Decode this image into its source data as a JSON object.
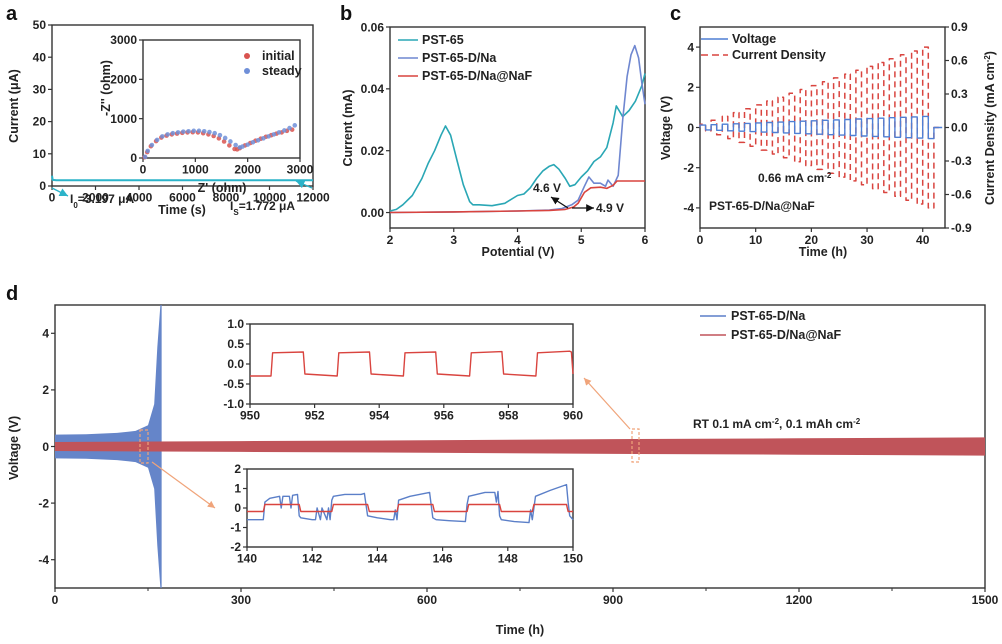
{
  "chart_data": [
    {
      "id": "a",
      "panel_label": "a",
      "type": "line",
      "xlabel": "Time (s)",
      "ylabel": "Current (μA)",
      "xlim": [
        0,
        12000
      ],
      "ylim": [
        0,
        50
      ],
      "xticks": [
        "0",
        "2000",
        "4000",
        "6000",
        "8000",
        "10000",
        "12000"
      ],
      "yticks": [
        "0",
        "10",
        "20",
        "30",
        "40",
        "50"
      ],
      "series": [
        {
          "name": "current",
          "color": "#2bb3c9",
          "x": [
            0,
            30,
            200,
            2000,
            4000,
            6000,
            8000,
            10000,
            12000
          ],
          "y": [
            3.197,
            1.9,
            1.8,
            1.78,
            1.77,
            1.8,
            1.78,
            1.77,
            1.772
          ]
        }
      ],
      "annotations": [
        {
          "text_main": "I",
          "text_sub": "0",
          "text_rest": "=3.197 μA"
        },
        {
          "text_main": "I",
          "text_sub": "S",
          "text_rest": "=1.772 μA"
        }
      ],
      "inset": {
        "type": "scatter",
        "xlabel": "Z' (ohm)",
        "ylabel": "-Z'' (ohm)",
        "xlim": [
          0,
          3000
        ],
        "ylim": [
          0,
          3000
        ],
        "xticks": [
          "0",
          "1000",
          "2000",
          "3000"
        ],
        "yticks": [
          "0",
          "1000",
          "2000",
          "3000"
        ],
        "legend": [
          "initial",
          "steady"
        ],
        "legend_position": "top-right",
        "series": [
          {
            "name": "initial",
            "color": "#d9534f",
            "x": [
              30,
              80,
              150,
              250,
              350,
              450,
              550,
              650,
              750,
              850,
              950,
              1050,
              1150,
              1250,
              1350,
              1450,
              1550,
              1650,
              1750,
              1800,
              1850,
              1950,
              2050,
              2150,
              2250,
              2350,
              2450,
              2550,
              2650,
              2750,
              2850
            ],
            "y": [
              20,
              150,
              300,
              430,
              520,
              570,
              600,
              620,
              640,
              650,
              655,
              650,
              630,
              600,
              560,
              500,
              420,
              320,
              230,
              220,
              250,
              320,
              380,
              440,
              490,
              540,
              580,
              620,
              650,
              690,
              720
            ]
          },
          {
            "name": "steady",
            "color": "#6f8fd8",
            "x": [
              40,
              90,
              170,
              270,
              370,
              470,
              570,
              670,
              770,
              870,
              970,
              1070,
              1170,
              1270,
              1370,
              1470,
              1570,
              1670,
              1770,
              1850,
              1900,
              2000,
              2100,
              2200,
              2300,
              2400,
              2500,
              2600,
              2700,
              2800,
              2900
            ],
            "y": [
              30,
              180,
              330,
              460,
              550,
              600,
              630,
              650,
              670,
              680,
              690,
              690,
              680,
              660,
              630,
              580,
              510,
              420,
              330,
              270,
              290,
              340,
              400,
              450,
              500,
              550,
              600,
              650,
              700,
              760,
              830
            ]
          }
        ]
      }
    },
    {
      "id": "b",
      "panel_label": "b",
      "type": "line",
      "xlabel": "Potential (V)",
      "ylabel": "Current (mA)",
      "xlim": [
        2,
        6
      ],
      "ylim": [
        -0.005,
        0.06
      ],
      "xticks": [
        "2",
        "3",
        "4",
        "5",
        "6"
      ],
      "yticks": [
        "0.00",
        "0.02",
        "0.04",
        "0.06"
      ],
      "legend_position": "top-left",
      "series": [
        {
          "name": "PST-65",
          "color": "#2aa7b5",
          "x": [
            2.0,
            2.1,
            2.2,
            2.35,
            2.5,
            2.6,
            2.7,
            2.8,
            2.87,
            2.95,
            3.05,
            3.15,
            3.25,
            3.3,
            3.4,
            3.6,
            3.8,
            4.0,
            4.1,
            4.2,
            4.3,
            4.4,
            4.5,
            4.57,
            4.65,
            4.75,
            4.82,
            4.9,
            5.0,
            5.1,
            5.2,
            5.3,
            5.4,
            5.5,
            5.55,
            5.65,
            5.75,
            5.85,
            5.95,
            6.0
          ],
          "y": [
            0.0005,
            0.001,
            0.0025,
            0.0055,
            0.011,
            0.016,
            0.02,
            0.025,
            0.028,
            0.025,
            0.017,
            0.009,
            0.0035,
            0.0025,
            0.0025,
            0.0022,
            0.003,
            0.0055,
            0.006,
            0.008,
            0.011,
            0.0135,
            0.015,
            0.0155,
            0.014,
            0.011,
            0.0085,
            0.009,
            0.0115,
            0.0135,
            0.0165,
            0.018,
            0.021,
            0.029,
            0.0345,
            0.031,
            0.033,
            0.036,
            0.041,
            0.045
          ]
        },
        {
          "name": "PST-65-D/Na",
          "color": "#6f87d0",
          "x": [
            2.0,
            3.0,
            4.0,
            4.5,
            4.7,
            4.85,
            4.95,
            5.05,
            5.12,
            5.2,
            5.3,
            5.38,
            5.42,
            5.5,
            5.58,
            5.65,
            5.72,
            5.78,
            5.84,
            5.9,
            5.95,
            6.0
          ],
          "y": [
            0.0,
            0.0002,
            0.0005,
            0.0008,
            0.0013,
            0.0025,
            0.004,
            0.0085,
            0.0115,
            0.0095,
            0.0095,
            0.0085,
            0.0105,
            0.0085,
            0.012,
            0.03,
            0.044,
            0.051,
            0.054,
            0.05,
            0.042,
            0.035
          ]
        },
        {
          "name": "PST-65-D/Na@NaF",
          "color": "#d9443f",
          "x": [
            2.0,
            3.0,
            4.0,
            4.5,
            4.75,
            4.88,
            4.95,
            5.05,
            5.15,
            5.3,
            5.4,
            5.5,
            5.56,
            5.6,
            6.0
          ],
          "y": [
            0.0,
            0.0002,
            0.0005,
            0.0007,
            0.001,
            0.0018,
            0.003,
            0.0065,
            0.008,
            0.0082,
            0.0078,
            0.0088,
            0.0102,
            0.0102,
            0.0102
          ]
        }
      ],
      "annotations": [
        {
          "text": "4.6 V"
        },
        {
          "text": "4.9 V"
        }
      ]
    },
    {
      "id": "c",
      "panel_label": "c",
      "type": "line",
      "xlabel": "Time (h)",
      "ylabel": "Voltage (V)",
      "ylabel_right": "Current Density (mA cm⁻²)",
      "ylabel_right_main": "Current Density (mA cm",
      "ylabel_right_sup": "-2",
      "ylabel_right_end": ")",
      "xlim": [
        0,
        44
      ],
      "ylim": [
        -5,
        5
      ],
      "ylim_right": [
        -0.9,
        0.9
      ],
      "xticks": [
        "0",
        "10",
        "20",
        "30",
        "40"
      ],
      "yticks": [
        "-4",
        "-2",
        "0",
        "2",
        "4"
      ],
      "yticks_right": [
        "-0.9",
        "-0.6",
        "-0.3",
        "0.0",
        "0.3",
        "0.6",
        "0.9"
      ],
      "legend_position": "top-left",
      "series": [
        {
          "name": "Voltage",
          "color": "#4f7fd4",
          "style": "solid",
          "step_hours": 2,
          "start_amplitude": 0.12,
          "end_amplitude": 0.55,
          "steps": 21
        },
        {
          "name": "Current Density",
          "color": "#d9443f",
          "style": "dashed",
          "step_hours": 2,
          "start_amplitude": 0.03,
          "end_amplitude": 0.72,
          "steps": 21
        }
      ],
      "annotations": [
        {
          "text_main": "0.66 mA cm",
          "text_sup": "-2"
        },
        {
          "text": "PST-65-D/Na@NaF"
        }
      ]
    },
    {
      "id": "d",
      "panel_label": "d",
      "type": "line",
      "xlabel": "Time (h)",
      "ylabel": "Voltage (V)",
      "xlim": [
        0,
        1500
      ],
      "ylim": [
        -5,
        5
      ],
      "xticks": [
        "0",
        "300",
        "600",
        "900",
        "1200",
        "1500"
      ],
      "yticks": [
        "-4",
        "-2",
        "0",
        "2",
        "4"
      ],
      "legend_position": "top-right",
      "series": [
        {
          "name": "PST-65-D/Na",
          "color": "#5b7fc8",
          "envelope_x": [
            0,
            50,
            100,
            130,
            150,
            160,
            165,
            170
          ],
          "envelope_y": [
            0.42,
            0.43,
            0.48,
            0.55,
            0.75,
            1.5,
            3.5,
            5
          ]
        },
        {
          "name": "PST-65-D/Na@NaF",
          "color": "#c0545a",
          "envelope_x": [
            0,
            300,
            600,
            900,
            1200,
            1500
          ],
          "envelope_y": [
            0.16,
            0.19,
            0.22,
            0.26,
            0.29,
            0.32
          ]
        }
      ],
      "annotations": [
        {
          "text": "RT  0.1 mA cm⁻²,  0.1 mAh cm⁻²",
          "p1": "RT  0.1 mA cm",
          "sup1": "-2",
          "p2": ",  0.1 mAh cm",
          "sup2": "-2"
        }
      ],
      "insets": [
        {
          "id": "d-inset-top",
          "xlim": [
            950,
            960
          ],
          "ylim": [
            -1,
            1
          ],
          "xticks": [
            "950",
            "952",
            "954",
            "956",
            "958",
            "960"
          ],
          "yticks": [
            "-1.0",
            "-0.5",
            "0.0",
            "0.5",
            "1.0"
          ],
          "series": [
            {
              "name": "PST-65-D/Na@NaF",
              "color": "#d9443f",
              "x": [
                950,
                950.65,
                950.7,
                951.65,
                951.7,
                952.7,
                952.75,
                953.7,
                953.75,
                954.75,
                954.8,
                955.75,
                955.8,
                956.8,
                956.85,
                957.8,
                957.85,
                958.85,
                958.9,
                959.9,
                959.95,
                960
              ],
              "y": [
                -0.3,
                -0.3,
                0.28,
                0.3,
                -0.25,
                -0.3,
                0.28,
                0.3,
                -0.25,
                -0.3,
                0.28,
                0.3,
                -0.25,
                -0.3,
                0.28,
                0.31,
                -0.25,
                -0.3,
                0.28,
                0.32,
                0.3,
                -0.25
              ]
            }
          ]
        },
        {
          "id": "d-inset-bottom",
          "xlim": [
            140,
            150
          ],
          "ylim": [
            -2,
            2
          ],
          "xticks": [
            "140",
            "142",
            "144",
            "146",
            "148",
            "150"
          ],
          "yticks": [
            "-2",
            "-1",
            "0",
            "1",
            "2"
          ],
          "series": [
            {
              "name": "PST-65-D/Na",
              "color": "#5b7fc8",
              "x": [
                140,
                140.5,
                140.55,
                140.7,
                141.0,
                141.05,
                141.1,
                141.3,
                141.35,
                141.4,
                141.55,
                141.6,
                141.65,
                142.0,
                142.1,
                142.15,
                142.25,
                142.3,
                142.45,
                142.5,
                142.55,
                142.6,
                142.65,
                143.0,
                143.5,
                143.6,
                143.7,
                144.0,
                144.4,
                144.5,
                144.55,
                144.6,
                144.65,
                145.0,
                145.6,
                145.7,
                145.8,
                146.2,
                146.7,
                146.75,
                146.8,
                147.3,
                147.6,
                147.65,
                147.7,
                147.75,
                147.8,
                148.2,
                148.65,
                148.7,
                148.75,
                148.85,
                149.3,
                149.8,
                149.85,
                149.9,
                150.0
              ],
              "y": [
                -0.6,
                -0.6,
                0.3,
                0.5,
                0.6,
                0.0,
                0.6,
                0.6,
                0.0,
                0.65,
                0.7,
                -0.4,
                -0.5,
                -0.6,
                -0.6,
                0.0,
                -0.6,
                0.0,
                -0.6,
                0.0,
                -0.6,
                0.4,
                0.6,
                0.7,
                0.7,
                0.75,
                -0.4,
                -0.5,
                -0.6,
                -0.6,
                -0.1,
                -0.6,
                0.4,
                0.6,
                0.8,
                -0.5,
                -0.6,
                -0.65,
                -0.7,
                0.2,
                0.6,
                0.8,
                0.8,
                0.3,
                0.85,
                -0.4,
                -0.6,
                -0.7,
                -0.75,
                -0.1,
                -0.6,
                0.6,
                0.9,
                1.2,
                0.3,
                -0.4,
                -0.6
              ]
            },
            {
              "name": "PST-65-D/Na@NaF",
              "color": "#d9443f",
              "x": [
                140,
                140.5,
                140.55,
                141.6,
                141.65,
                142.6,
                142.65,
                143.7,
                143.75,
                144.6,
                144.65,
                145.7,
                145.75,
                146.75,
                146.8,
                147.75,
                147.8,
                148.75,
                148.8,
                149.8,
                149.85,
                150
              ],
              "y": [
                -0.18,
                -0.18,
                0.18,
                0.18,
                -0.18,
                -0.18,
                0.18,
                0.18,
                -0.18,
                -0.18,
                0.18,
                0.18,
                -0.18,
                -0.18,
                0.18,
                0.18,
                -0.18,
                -0.18,
                0.18,
                0.18,
                -0.18,
                -0.18
              ]
            }
          ]
        }
      ]
    }
  ]
}
